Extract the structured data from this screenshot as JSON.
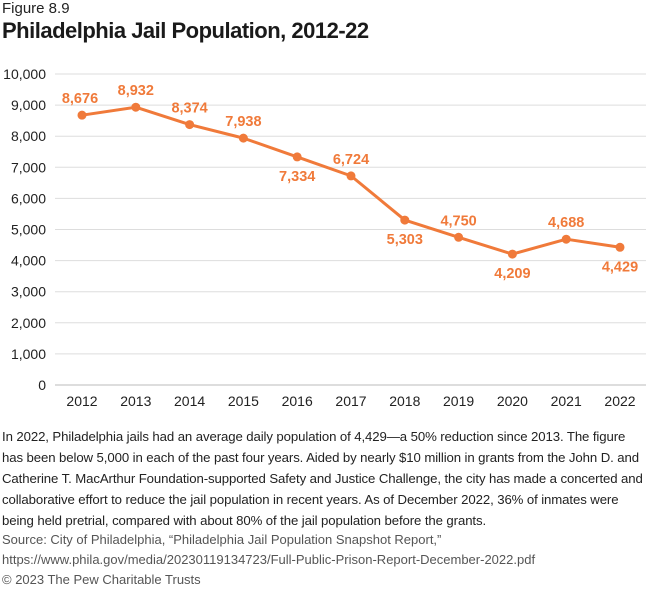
{
  "figure_label": "Figure 8.9",
  "chart_data": {
    "type": "line",
    "title": "Philadelphia Jail Population, 2012-22",
    "x": [
      "2012",
      "2013",
      "2014",
      "2015",
      "2016",
      "2017",
      "2018",
      "2019",
      "2020",
      "2021",
      "2022"
    ],
    "series": [
      {
        "values": [
          8676,
          8932,
          8374,
          7938,
          7334,
          6724,
          5303,
          4750,
          4209,
          4688,
          4429
        ],
        "labels": [
          "8,676",
          "8,932",
          "8,374",
          "7,938",
          "7,334",
          "6,724",
          "5,303",
          "4,750",
          "4,209",
          "4,688",
          "4,429"
        ],
        "label_positions": [
          "above",
          "above",
          "above",
          "above",
          "below",
          "above",
          "below",
          "above",
          "below",
          "above",
          "below"
        ]
      }
    ],
    "ylim": [
      0,
      10000
    ],
    "yticks": [
      "0",
      "1,000",
      "2,000",
      "3,000",
      "4,000",
      "5,000",
      "6,000",
      "7,000",
      "8,000",
      "9,000",
      "10,000"
    ],
    "grid": true,
    "color": "#f07a3a"
  },
  "description": "In 2022, Philadelphia jails had an average daily population of 4,429—a 50% reduction since 2013. The figure has been below 5,000 in each of the past four years. Aided by nearly $10 million in grants from the John D. and Catherine T. MacArthur Foundation-supported Safety and Justice Challenge, the city has made a concerted and collaborative effort to reduce the jail population in recent years. As of December 2022, 36% of inmates were being held pretrial, compared with about 80% of the jail population before the grants.",
  "source": "Source: City of Philadelphia, “Philadelphia Jail Population Snapshot Report,” https://www.phila.gov/media/20230119134723/Full-Public-Prison-Report-December-2022.pdf",
  "copyright": "© 2023 The Pew Charitable Trusts"
}
